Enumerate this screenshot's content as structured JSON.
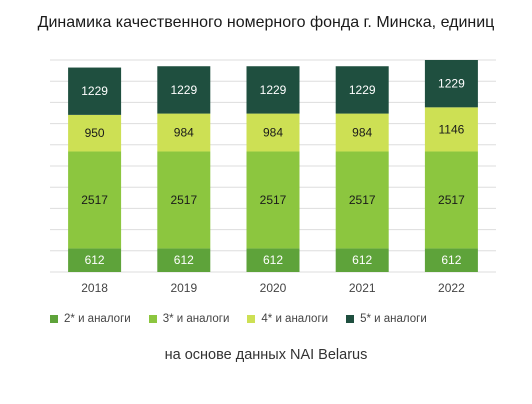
{
  "title": "Динамика качественного номерного фонда г. Минска, единиц",
  "source_note": "на основе данных NAI Belarus",
  "colors": {
    "two_star": "#5ea33a",
    "three_star": "#8cc63f",
    "four_star": "#cde054",
    "five_star": "#1f4f3f",
    "grid": "#dddddd"
  },
  "chart_data": {
    "type": "bar",
    "stacked": true,
    "categories": [
      "2018",
      "2019",
      "2020",
      "2021",
      "2022"
    ],
    "series": [
      {
        "name": "2* и аналоги",
        "color": "#5ea33a",
        "values": [
          612,
          612,
          612,
          612,
          612
        ]
      },
      {
        "name": "3* и аналоги",
        "color": "#8cc63f",
        "values": [
          2517,
          2517,
          2517,
          2517,
          2517
        ]
      },
      {
        "name": "4* и аналоги",
        "color": "#cde054",
        "values": [
          950,
          984,
          984,
          984,
          1146
        ]
      },
      {
        "name": "5* и аналоги",
        "color": "#1f4f3f",
        "values": [
          1229,
          1229,
          1229,
          1229,
          1229
        ]
      }
    ],
    "grid": true,
    "legend_position": "bottom"
  }
}
